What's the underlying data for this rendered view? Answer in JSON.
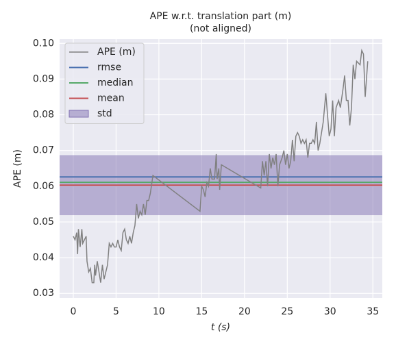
{
  "chart_data": {
    "type": "line",
    "title": "APE w.r.t. translation part (m)",
    "subtitle": "(not aligned)",
    "xlabel": "t (s)",
    "ylabel": "APE (m)",
    "xlim": [
      -1.6,
      36.1
    ],
    "ylim": [
      0.0287,
      0.1012
    ],
    "xticks": [
      0,
      5,
      10,
      15,
      20,
      25,
      30,
      35
    ],
    "yticks": [
      0.03,
      0.04,
      0.05,
      0.06,
      0.07,
      0.08,
      0.09,
      {
        "value": 0.1,
        "label": "0.10"
      }
    ],
    "grid": true,
    "legend": "upper left",
    "series": [
      {
        "name": "APE (m)",
        "color": "#808080",
        "x": [
          0,
          0.2,
          0.4,
          0.5,
          0.6,
          0.8,
          1.0,
          1.1,
          1.3,
          1.5,
          1.6,
          1.8,
          2.0,
          2.2,
          2.4,
          2.5,
          2.6,
          2.8,
          3.0,
          3.2,
          3.4,
          3.6,
          3.8,
          4.0,
          4.2,
          4.4,
          4.6,
          4.8,
          5.0,
          5.2,
          5.4,
          5.6,
          5.8,
          6.0,
          6.2,
          6.4,
          6.6,
          6.8,
          7.0,
          7.2,
          7.4,
          7.6,
          7.8,
          8.0,
          8.2,
          8.4,
          8.6,
          8.8,
          9.0,
          9.3,
          14.8,
          15.0,
          15.2,
          15.4,
          15.6,
          15.8,
          16.0,
          16.2,
          16.5,
          16.7,
          16.8,
          17.0,
          17.1,
          17.3,
          21.9,
          22.1,
          22.3,
          22.5,
          22.7,
          22.9,
          23.1,
          23.3,
          23.5,
          23.7,
          23.9,
          24.1,
          24.4,
          24.6,
          24.8,
          25.0,
          25.2,
          25.4,
          25.6,
          25.8,
          26.0,
          26.2,
          26.4,
          26.6,
          26.8,
          27.0,
          27.2,
          27.4,
          27.6,
          27.8,
          28.0,
          28.2,
          28.4,
          28.6,
          28.8,
          29.0,
          29.2,
          29.5,
          29.7,
          29.9,
          30.1,
          30.3,
          30.5,
          30.7,
          31.0,
          31.2,
          31.5,
          31.7,
          31.9,
          32.1,
          32.3,
          32.5,
          32.7,
          32.9,
          33.1,
          33.5,
          33.7,
          33.9,
          34.1,
          34.4
        ],
        "values": [
          0.046,
          0.045,
          0.047,
          0.041,
          0.048,
          0.043,
          0.048,
          0.044,
          0.045,
          0.046,
          0.039,
          0.036,
          0.037,
          0.033,
          0.033,
          0.038,
          0.035,
          0.039,
          0.036,
          0.033,
          0.038,
          0.034,
          0.036,
          0.038,
          0.044,
          0.043,
          0.044,
          0.043,
          0.043,
          0.045,
          0.043,
          0.042,
          0.047,
          0.048,
          0.045,
          0.044,
          0.046,
          0.044,
          0.047,
          0.049,
          0.055,
          0.051,
          0.053,
          0.052,
          0.055,
          0.052,
          0.056,
          0.056,
          0.058,
          0.063,
          0.053,
          0.06,
          0.059,
          0.057,
          0.061,
          0.06,
          0.065,
          0.062,
          0.062,
          0.069,
          0.062,
          0.065,
          0.059,
          0.066,
          0.0595,
          0.067,
          0.063,
          0.067,
          0.06,
          0.069,
          0.065,
          0.068,
          0.066,
          0.069,
          0.06,
          0.066,
          0.068,
          0.07,
          0.066,
          0.069,
          0.065,
          0.067,
          0.073,
          0.067,
          0.074,
          0.075,
          0.074,
          0.072,
          0.073,
          0.072,
          0.073,
          0.068,
          0.072,
          0.072,
          0.073,
          0.072,
          0.078,
          0.07,
          0.072,
          0.075,
          0.078,
          0.086,
          0.08,
          0.074,
          0.076,
          0.084,
          0.074,
          0.082,
          0.084,
          0.082,
          0.087,
          0.091,
          0.084,
          0.084,
          0.077,
          0.082,
          0.094,
          0.09,
          0.095,
          0.094,
          0.098,
          0.097,
          0.085,
          0.095
        ]
      }
    ],
    "hlines": [
      {
        "name": "rmse",
        "color": "#4c72b0",
        "value": 0.0626
      },
      {
        "name": "median",
        "color": "#55a868",
        "value": 0.0611
      },
      {
        "name": "mean",
        "color": "#c44e52",
        "value": 0.0603
      }
    ],
    "std": {
      "name": "std",
      "color": "#8172b2",
      "value": 0.0084
    }
  }
}
